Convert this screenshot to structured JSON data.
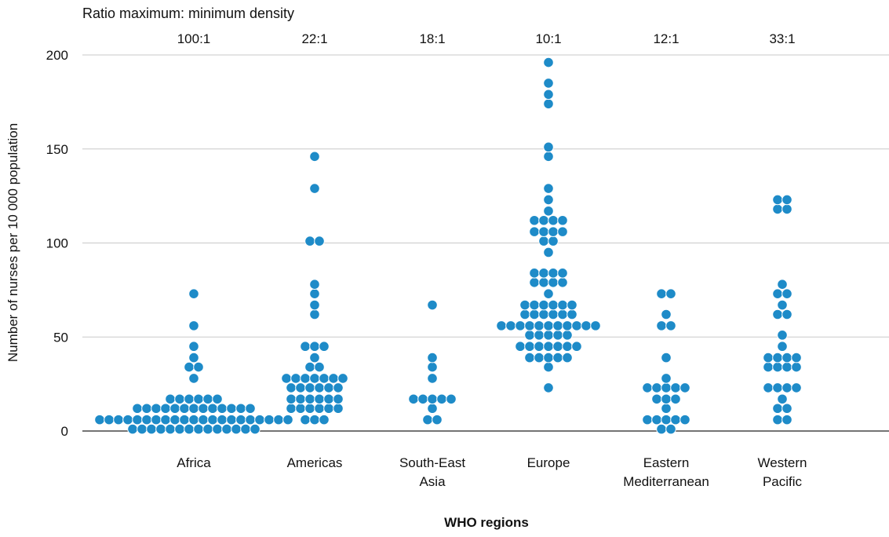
{
  "chart_data": {
    "type": "scatter",
    "subtype": "dot-strip",
    "ratio_title": "Ratio maximum: minimum density",
    "ylabel": "Number of nurses per 10 000 population",
    "xlabel": "WHO regions",
    "ylim": [
      0,
      200
    ],
    "yticks": [
      "0",
      "50",
      "100",
      "150",
      "200"
    ],
    "grid": true,
    "point_color": "#1e8bc8",
    "categories": [
      {
        "label_lines": [
          "Africa"
        ],
        "ratio": "100:1",
        "values": [
          1,
          1,
          1,
          1,
          1,
          1,
          1,
          1,
          1,
          1,
          1,
          1,
          1,
          1,
          6,
          6,
          6,
          6,
          6,
          6,
          6,
          6,
          6,
          6,
          6,
          6,
          6,
          6,
          6,
          6,
          6,
          6,
          6,
          6,
          6,
          12,
          12,
          12,
          12,
          12,
          12,
          12,
          12,
          12,
          12,
          12,
          12,
          12,
          17,
          17,
          17,
          17,
          17,
          17,
          28,
          34,
          34,
          39,
          45,
          56,
          73
        ]
      },
      {
        "label_lines": [
          "Americas"
        ],
        "ratio": "22:1",
        "values": [
          6,
          6,
          6,
          12,
          12,
          12,
          12,
          12,
          12,
          17,
          17,
          17,
          17,
          17,
          17,
          23,
          23,
          23,
          23,
          23,
          23,
          28,
          28,
          28,
          28,
          28,
          28,
          28,
          34,
          34,
          39,
          45,
          45,
          45,
          62,
          67,
          73,
          78,
          101,
          101,
          129,
          146
        ]
      },
      {
        "label_lines": [
          "South-East",
          "Asia"
        ],
        "ratio": "18:1",
        "values": [
          6,
          6,
          12,
          17,
          17,
          17,
          17,
          17,
          28,
          34,
          39,
          67
        ]
      },
      {
        "label_lines": [
          "Europe"
        ],
        "ratio": "10:1",
        "values": [
          23,
          34,
          39,
          39,
          39,
          39,
          39,
          45,
          45,
          45,
          45,
          45,
          45,
          45,
          51,
          51,
          51,
          51,
          51,
          56,
          56,
          56,
          56,
          56,
          56,
          56,
          56,
          56,
          56,
          56,
          62,
          62,
          62,
          62,
          62,
          62,
          67,
          67,
          67,
          67,
          67,
          67,
          73,
          79,
          79,
          79,
          79,
          84,
          84,
          84,
          84,
          95,
          101,
          101,
          106,
          106,
          106,
          106,
          112,
          112,
          112,
          112,
          117,
          123,
          129,
          146,
          151,
          174,
          179,
          185,
          196
        ]
      },
      {
        "label_lines": [
          "Eastern",
          "Mediterranean"
        ],
        "ratio": "12:1",
        "values": [
          1,
          1,
          6,
          6,
          6,
          6,
          6,
          12,
          17,
          17,
          17,
          23,
          23,
          23,
          23,
          23,
          28,
          39,
          56,
          56,
          62,
          73,
          73
        ]
      },
      {
        "label_lines": [
          "Western",
          "Pacific"
        ],
        "ratio": "33:1",
        "values": [
          6,
          6,
          12,
          12,
          17,
          23,
          23,
          23,
          23,
          34,
          34,
          34,
          34,
          39,
          39,
          39,
          39,
          45,
          51,
          62,
          62,
          67,
          73,
          73,
          78,
          118,
          118,
          123,
          123
        ]
      }
    ]
  }
}
